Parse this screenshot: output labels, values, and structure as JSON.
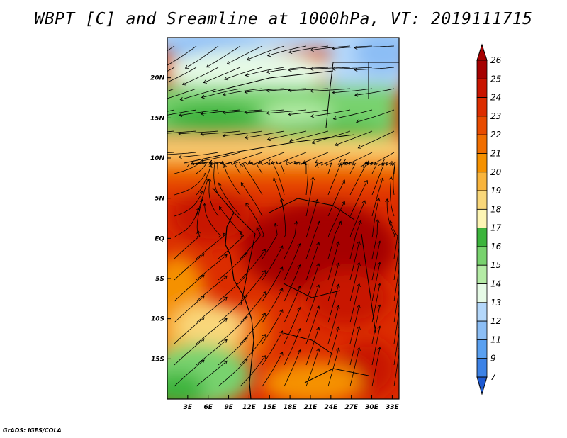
{
  "title": "WBPT [C] and Sreamline at 1000hPa, VT: 2019111715",
  "credit": "GrADS: IGES/COLA",
  "chart_data": {
    "type": "heatmap",
    "variable": "Wet-bulb potential temperature with streamlines",
    "lon_range": [
      0,
      34
    ],
    "lat_range": [
      -20,
      25
    ],
    "x_ticks": [
      {
        "label": "3E",
        "value": 3
      },
      {
        "label": "6E",
        "value": 6
      },
      {
        "label": "9E",
        "value": 9
      },
      {
        "label": "12E",
        "value": 12
      },
      {
        "label": "15E",
        "value": 15
      },
      {
        "label": "18E",
        "value": 18
      },
      {
        "label": "21E",
        "value": 21
      },
      {
        "label": "24E",
        "value": 24
      },
      {
        "label": "27E",
        "value": 27
      },
      {
        "label": "30E",
        "value": 30
      },
      {
        "label": "33E",
        "value": 33
      }
    ],
    "y_ticks": [
      {
        "label": "20N",
        "value": 20
      },
      {
        "label": "15N",
        "value": 15
      },
      {
        "label": "10N",
        "value": 10
      },
      {
        "label": "5N",
        "value": 5
      },
      {
        "label": "EQ",
        "value": 0
      },
      {
        "label": "5S",
        "value": -5
      },
      {
        "label": "10S",
        "value": -10
      },
      {
        "label": "15S",
        "value": -15
      }
    ],
    "colorbar": {
      "levels": [
        "26",
        "25",
        "24",
        "23",
        "22",
        "21",
        "20",
        "19",
        "18",
        "17",
        "16",
        "15",
        "14",
        "13",
        "12",
        "11",
        "9",
        "7"
      ],
      "colors": [
        "#a50000",
        "#c81400",
        "#dc2d00",
        "#e84b00",
        "#f06e00",
        "#f59100",
        "#f8b43c",
        "#f9d77a",
        "#fdf5b4",
        "#3cb43c",
        "#78d26e",
        "#b4eba5",
        "#e6fae6",
        "#b4d7fa",
        "#8cbef5",
        "#5aa0f0",
        "#3c82e6",
        "#1e5ad2"
      ],
      "below_color": "#1e5ad2",
      "above_color": "#a50000"
    }
  }
}
